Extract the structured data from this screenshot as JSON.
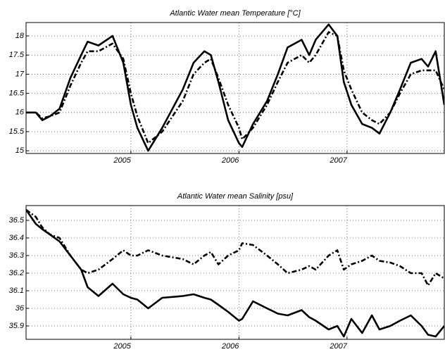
{
  "chart_data": [
    {
      "type": "line",
      "title": "Atlantic Water mean Temperature [°C]",
      "x": [
        2004.03,
        2004.12,
        2004.18,
        2004.25,
        2004.34,
        2004.44,
        2004.54,
        2004.6,
        2004.7,
        2004.83,
        2004.93,
        2005.0,
        2005.06,
        2005.16,
        2005.29,
        2005.48,
        2005.58,
        2005.68,
        2005.74,
        2005.81,
        2005.9,
        2006.0,
        2006.03,
        2006.13,
        2006.26,
        2006.36,
        2006.45,
        2006.58,
        2006.65,
        2006.71,
        2006.83,
        2006.91,
        2006.97,
        2007.04,
        2007.14,
        2007.23,
        2007.3,
        2007.4,
        2007.49,
        2007.59,
        2007.69,
        2007.75,
        2007.82,
        2007.9
      ],
      "series": [
        {
          "color": "#000000",
          "style": "solid",
          "values": [
            16.0,
            16.0,
            15.8,
            15.9,
            16.1,
            16.9,
            17.5,
            17.85,
            17.75,
            18.0,
            17.3,
            16.2,
            15.6,
            15.0,
            15.6,
            16.6,
            17.3,
            17.6,
            17.5,
            16.8,
            15.8,
            15.2,
            15.1,
            15.7,
            16.3,
            17.0,
            17.7,
            17.9,
            17.5,
            17.9,
            18.3,
            18.0,
            16.8,
            16.2,
            15.7,
            15.6,
            15.45,
            16.0,
            16.6,
            17.3,
            17.4,
            17.2,
            17.6,
            16.2
          ]
        },
        {
          "color": "#000000",
          "style": "dashdot",
          "values": [
            16.0,
            16.0,
            15.85,
            15.9,
            16.0,
            16.7,
            17.3,
            17.6,
            17.6,
            17.8,
            17.4,
            16.5,
            15.9,
            15.2,
            15.5,
            16.3,
            17.0,
            17.3,
            17.4,
            16.9,
            16.2,
            15.6,
            15.3,
            15.6,
            16.2,
            16.8,
            17.3,
            17.5,
            17.3,
            17.5,
            18.1,
            18.0,
            17.1,
            16.6,
            16.0,
            15.8,
            15.7,
            16.0,
            16.5,
            17.0,
            17.1,
            17.1,
            17.1,
            16.6
          ]
        }
      ],
      "xlim": [
        2004.03,
        2007.9
      ],
      "xticks": [
        2005,
        2006,
        2007
      ],
      "ylim": [
        14.93,
        18.35
      ],
      "yticks": [
        15,
        15.5,
        16,
        16.5,
        17,
        17.5,
        18
      ],
      "grid": true
    },
    {
      "type": "line",
      "title": "Atlantic Water mean Salinity [psu]",
      "x": [
        2004.03,
        2004.12,
        2004.18,
        2004.25,
        2004.34,
        2004.44,
        2004.54,
        2004.6,
        2004.7,
        2004.83,
        2004.93,
        2005.0,
        2005.06,
        2005.16,
        2005.29,
        2005.48,
        2005.58,
        2005.68,
        2005.74,
        2005.81,
        2005.9,
        2006.0,
        2006.03,
        2006.13,
        2006.26,
        2006.36,
        2006.45,
        2006.58,
        2006.65,
        2006.71,
        2006.83,
        2006.91,
        2006.97,
        2007.04,
        2007.14,
        2007.23,
        2007.3,
        2007.4,
        2007.49,
        2007.59,
        2007.69,
        2007.75,
        2007.82,
        2007.9
      ],
      "series": [
        {
          "color": "#000000",
          "style": "solid",
          "values": [
            36.56,
            36.48,
            36.45,
            36.42,
            36.38,
            36.3,
            36.22,
            36.12,
            36.07,
            36.14,
            36.08,
            36.06,
            36.05,
            36.0,
            36.06,
            36.07,
            36.08,
            36.06,
            36.05,
            36.02,
            35.98,
            35.93,
            35.94,
            36.04,
            36.0,
            35.97,
            35.96,
            35.99,
            35.95,
            35.93,
            35.88,
            35.9,
            35.84,
            35.94,
            35.86,
            35.96,
            35.88,
            35.9,
            35.93,
            35.96,
            35.9,
            35.85,
            35.84,
            35.9
          ]
        },
        {
          "color": "#000000",
          "style": "dashdot",
          "values": [
            36.56,
            36.52,
            36.46,
            36.42,
            36.4,
            36.3,
            36.22,
            36.2,
            36.22,
            36.28,
            36.33,
            36.3,
            36.3,
            36.33,
            36.3,
            36.28,
            36.25,
            36.3,
            36.32,
            36.25,
            36.3,
            36.33,
            36.37,
            36.36,
            36.3,
            36.25,
            36.2,
            36.22,
            36.24,
            36.22,
            36.3,
            36.33,
            36.22,
            36.25,
            36.27,
            36.3,
            36.27,
            36.26,
            36.24,
            36.2,
            36.2,
            36.13,
            36.2,
            36.17
          ]
        }
      ],
      "xlim": [
        2004.03,
        2007.9
      ],
      "xticks": [
        2005,
        2006,
        2007
      ],
      "ylim": [
        35.824,
        36.584
      ],
      "yticks": [
        35.9,
        36,
        36.1,
        36.2,
        36.3,
        36.4,
        36.5
      ],
      "grid": true
    }
  ]
}
